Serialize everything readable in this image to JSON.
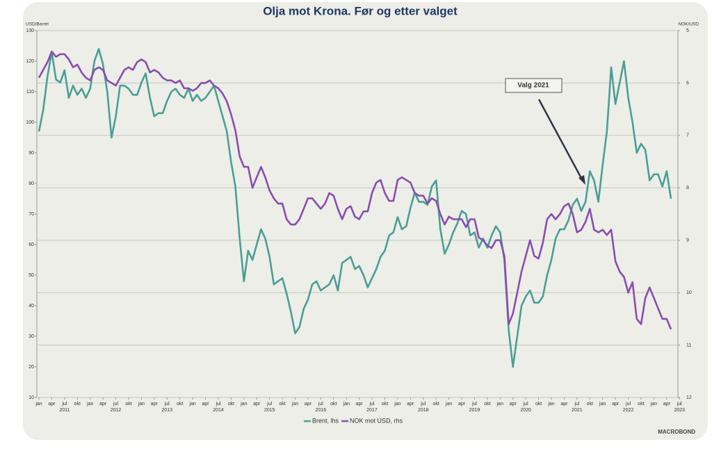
{
  "chart_data": {
    "type": "line",
    "title": "Olja mot Krona. Før og etter valget",
    "y_label": "USD/Barrel",
    "y2_label": "NOK/USD",
    "annotation": "Valg 2021",
    "logo": "MACROBOND",
    "x": [
      "2011-01",
      "2011-02",
      "2011-03",
      "2011-04",
      "2011-05",
      "2011-06",
      "2011-07",
      "2011-08",
      "2011-09",
      "2011-10",
      "2011-11",
      "2011-12",
      "2012-01",
      "2012-02",
      "2012-03",
      "2012-04",
      "2012-05",
      "2012-06",
      "2012-07",
      "2012-08",
      "2012-09",
      "2012-10",
      "2012-11",
      "2012-12",
      "2013-01",
      "2013-02",
      "2013-03",
      "2013-04",
      "2013-05",
      "2013-06",
      "2013-07",
      "2013-08",
      "2013-09",
      "2013-10",
      "2013-11",
      "2013-12",
      "2014-01",
      "2014-02",
      "2014-03",
      "2014-04",
      "2014-05",
      "2014-06",
      "2014-07",
      "2014-08",
      "2014-09",
      "2014-10",
      "2014-11",
      "2014-12",
      "2015-01",
      "2015-02",
      "2015-03",
      "2015-04",
      "2015-05",
      "2015-06",
      "2015-07",
      "2015-08",
      "2015-09",
      "2015-10",
      "2015-11",
      "2015-12",
      "2016-01",
      "2016-02",
      "2016-03",
      "2016-04",
      "2016-05",
      "2016-06",
      "2016-07",
      "2016-08",
      "2016-09",
      "2016-10",
      "2016-11",
      "2016-12",
      "2017-01",
      "2017-02",
      "2017-03",
      "2017-04",
      "2017-05",
      "2017-06",
      "2017-07",
      "2017-08",
      "2017-09",
      "2017-10",
      "2017-11",
      "2017-12",
      "2018-01",
      "2018-02",
      "2018-03",
      "2018-04",
      "2018-05",
      "2018-06",
      "2018-07",
      "2018-08",
      "2018-09",
      "2018-10",
      "2018-11",
      "2018-12",
      "2019-01",
      "2019-02",
      "2019-03",
      "2019-04",
      "2019-05",
      "2019-06",
      "2019-07",
      "2019-08",
      "2019-09",
      "2019-10",
      "2019-11",
      "2019-12",
      "2020-01",
      "2020-02",
      "2020-03",
      "2020-04",
      "2020-05",
      "2020-06",
      "2020-07",
      "2020-08",
      "2020-09",
      "2020-10",
      "2020-11",
      "2020-12",
      "2021-01",
      "2021-02",
      "2021-03",
      "2021-04",
      "2021-05",
      "2021-06",
      "2021-07",
      "2021-08",
      "2021-09",
      "2021-10",
      "2021-11",
      "2021-12",
      "2022-01",
      "2022-02",
      "2022-03",
      "2022-04",
      "2022-05",
      "2022-06",
      "2022-07",
      "2022-08",
      "2022-09",
      "2022-10",
      "2022-11",
      "2022-12",
      "2023-01",
      "2023-02",
      "2023-03",
      "2023-04",
      "2023-05"
    ],
    "series": [
      {
        "name": "Brent, lhs",
        "color": "#4a9e96",
        "axis": "y",
        "values": [
          97,
          104,
          115,
          123,
          114,
          113,
          117,
          108,
          112,
          109,
          111,
          108,
          111,
          120,
          124,
          119,
          110,
          95,
          102,
          112,
          112,
          111,
          109,
          109,
          113,
          116,
          108,
          102,
          103,
          103,
          107,
          110,
          111,
          109,
          108,
          111,
          107,
          109,
          107,
          108,
          110,
          112,
          107,
          102,
          97,
          87,
          79,
          62,
          48,
          58,
          55,
          60,
          65,
          62,
          56,
          47,
          48,
          49,
          44,
          38,
          31,
          33,
          39,
          42,
          47,
          48,
          45,
          46,
          47,
          50,
          45,
          54,
          55,
          56,
          52,
          53,
          50,
          46,
          49,
          52,
          56,
          58,
          63,
          64,
          69,
          65,
          66,
          72,
          77,
          74,
          74,
          73,
          79,
          81,
          65,
          57,
          60,
          64,
          67,
          71,
          70,
          63,
          64,
          59,
          62,
          59,
          63,
          66,
          64,
          55,
          32,
          20,
          30,
          40,
          43,
          45,
          41,
          41,
          43,
          50,
          55,
          62,
          65,
          65,
          68,
          73,
          75,
          71,
          74,
          84,
          81,
          74,
          86,
          97,
          118,
          106,
          113,
          120,
          108,
          100,
          90,
          93,
          91,
          81,
          83,
          83,
          79,
          84,
          75
        ]
      },
      {
        "name": "NOK mot USD, rhs",
        "color": "#8a4cb0",
        "axis": "y2",
        "values": [
          5.9,
          5.75,
          5.6,
          5.4,
          5.5,
          5.45,
          5.45,
          5.55,
          5.7,
          5.65,
          5.8,
          5.9,
          5.95,
          5.75,
          5.7,
          5.75,
          5.95,
          6.0,
          6.05,
          5.9,
          5.75,
          5.7,
          5.75,
          5.6,
          5.55,
          5.6,
          5.8,
          5.75,
          5.8,
          5.9,
          5.95,
          5.95,
          6.0,
          5.95,
          6.1,
          6.1,
          6.15,
          6.1,
          6.0,
          6.0,
          5.95,
          6.05,
          6.1,
          6.2,
          6.35,
          6.6,
          6.9,
          7.4,
          7.6,
          7.6,
          8.0,
          7.8,
          7.6,
          7.8,
          8.05,
          8.2,
          8.3,
          8.3,
          8.6,
          8.7,
          8.7,
          8.6,
          8.4,
          8.2,
          8.2,
          8.3,
          8.4,
          8.3,
          8.1,
          8.15,
          8.4,
          8.6,
          8.4,
          8.35,
          8.55,
          8.6,
          8.45,
          8.45,
          8.1,
          7.9,
          7.85,
          8.1,
          8.25,
          8.25,
          7.85,
          7.8,
          7.85,
          7.9,
          8.1,
          8.15,
          8.15,
          8.3,
          8.2,
          8.25,
          8.5,
          8.7,
          8.55,
          8.6,
          8.6,
          8.6,
          8.75,
          8.6,
          8.6,
          8.95,
          9.0,
          9.1,
          9.15,
          9.0,
          9.0,
          9.3,
          10.6,
          10.4,
          10.0,
          9.6,
          9.3,
          9.0,
          9.3,
          9.35,
          9.05,
          8.6,
          8.5,
          8.6,
          8.5,
          8.35,
          8.3,
          8.5,
          8.85,
          8.8,
          8.65,
          8.4,
          8.8,
          8.85,
          8.8,
          8.9,
          8.8,
          9.4,
          9.6,
          9.7,
          10.0,
          9.8,
          10.5,
          10.6,
          10.1,
          9.9,
          10.1,
          10.3,
          10.5,
          10.5,
          10.7
        ]
      }
    ],
    "ylim": [
      10,
      130
    ],
    "yticks": [
      10,
      20,
      30,
      40,
      50,
      60,
      70,
      80,
      90,
      100,
      110,
      120,
      130
    ],
    "y2lim": [
      5,
      12
    ],
    "y2_inverted": true,
    "y2ticks": [
      5,
      6,
      7,
      8,
      9,
      10,
      11,
      12
    ],
    "grid": "y2",
    "xticks": [
      {
        "value": "2011-01",
        "label": "jan"
      },
      {
        "value": "2011-04",
        "label": "apr"
      },
      {
        "value": "2011-07",
        "label": "jul"
      },
      {
        "value": "2011-10",
        "label": "okt"
      },
      {
        "value": "2012-01",
        "label": "jan"
      },
      {
        "value": "2012-04",
        "label": "apr"
      },
      {
        "value": "2012-07",
        "label": "jul"
      },
      {
        "value": "2012-10",
        "label": "okt"
      },
      {
        "value": "2013-01",
        "label": "jan"
      },
      {
        "value": "2013-04",
        "label": "apr"
      },
      {
        "value": "2013-07",
        "label": "jul"
      },
      {
        "value": "2013-10",
        "label": "okt"
      },
      {
        "value": "2014-01",
        "label": "jan"
      },
      {
        "value": "2014-04",
        "label": "apr"
      },
      {
        "value": "2014-07",
        "label": "jul"
      },
      {
        "value": "2014-10",
        "label": "okt"
      },
      {
        "value": "2015-01",
        "label": "jan"
      },
      {
        "value": "2015-04",
        "label": "apr"
      },
      {
        "value": "2015-07",
        "label": "jul"
      },
      {
        "value": "2015-10",
        "label": "okt"
      },
      {
        "value": "2016-01",
        "label": "jan"
      },
      {
        "value": "2016-04",
        "label": "apr"
      },
      {
        "value": "2016-07",
        "label": "jul"
      },
      {
        "value": "2016-10",
        "label": "okt"
      },
      {
        "value": "2017-01",
        "label": "jan"
      },
      {
        "value": "2017-04",
        "label": "apr"
      },
      {
        "value": "2017-07",
        "label": "jul"
      },
      {
        "value": "2017-10",
        "label": "okt"
      },
      {
        "value": "2018-01",
        "label": "jan"
      },
      {
        "value": "2018-04",
        "label": "apr"
      },
      {
        "value": "2018-07",
        "label": "jul"
      },
      {
        "value": "2018-10",
        "label": "okt"
      },
      {
        "value": "2019-01",
        "label": "jan"
      },
      {
        "value": "2019-04",
        "label": "apr"
      },
      {
        "value": "2019-07",
        "label": "jul"
      },
      {
        "value": "2019-10",
        "label": "okt"
      },
      {
        "value": "2020-01",
        "label": "jan"
      },
      {
        "value": "2020-04",
        "label": "apr"
      },
      {
        "value": "2020-07",
        "label": "jul"
      },
      {
        "value": "2020-10",
        "label": "okt"
      },
      {
        "value": "2021-01",
        "label": "jan"
      },
      {
        "value": "2021-04",
        "label": "apr"
      },
      {
        "value": "2021-07",
        "label": "jul"
      },
      {
        "value": "2021-10",
        "label": "okt"
      },
      {
        "value": "2022-01",
        "label": "jan"
      },
      {
        "value": "2022-04",
        "label": "apr"
      },
      {
        "value": "2022-07",
        "label": "jul"
      },
      {
        "value": "2022-10",
        "label": "okt"
      },
      {
        "value": "2023-01",
        "label": "jan"
      },
      {
        "value": "2023-04",
        "label": "apr"
      },
      {
        "value": "2023-07",
        "label": "jul"
      }
    ],
    "year_labels": [
      {
        "value": "2011-07",
        "label": "2011"
      },
      {
        "value": "2012-07",
        "label": "2012"
      },
      {
        "value": "2013-07",
        "label": "2013"
      },
      {
        "value": "2014-07",
        "label": "2014"
      },
      {
        "value": "2015-07",
        "label": "2015"
      },
      {
        "value": "2016-07",
        "label": "2016"
      },
      {
        "value": "2017-07",
        "label": "2017"
      },
      {
        "value": "2018-07",
        "label": "2018"
      },
      {
        "value": "2019-07",
        "label": "2019"
      },
      {
        "value": "2020-07",
        "label": "2020"
      },
      {
        "value": "2021-07",
        "label": "2021"
      },
      {
        "value": "2022-07",
        "label": "2022"
      },
      {
        "value": "2023-07",
        "label": "2023"
      }
    ]
  }
}
